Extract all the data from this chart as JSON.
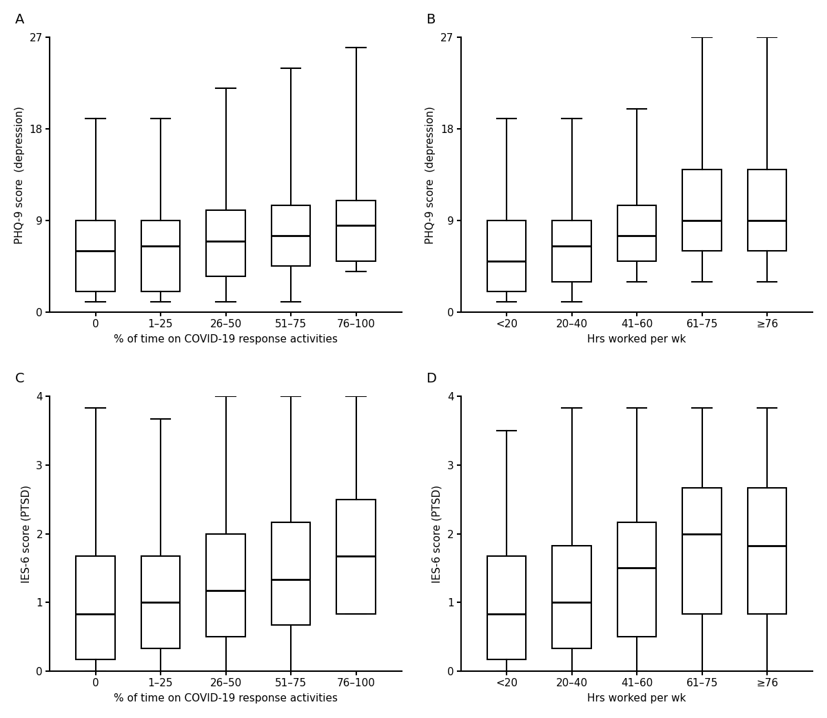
{
  "panel_A": {
    "label": "A",
    "xlabel": "% of time on COVID-19 response activities",
    "ylabel": "PHQ-9 score  (depression)",
    "categories": [
      "0",
      "1–25",
      "26–50",
      "51–75",
      "76–100"
    ],
    "boxes": [
      {
        "whislo": 1.0,
        "q1": 2.0,
        "med": 6.0,
        "q3": 9.0,
        "whishi": 19.0
      },
      {
        "whislo": 1.0,
        "q1": 2.0,
        "med": 6.5,
        "q3": 9.0,
        "whishi": 19.0
      },
      {
        "whislo": 1.0,
        "q1": 3.5,
        "med": 7.0,
        "q3": 10.0,
        "whishi": 22.0
      },
      {
        "whislo": 1.0,
        "q1": 4.5,
        "med": 7.5,
        "q3": 10.5,
        "whishi": 24.0
      },
      {
        "whislo": 4.0,
        "q1": 5.0,
        "med": 8.5,
        "q3": 11.0,
        "whishi": 26.0
      }
    ],
    "ylim": [
      0,
      27
    ],
    "yticks": [
      0,
      9,
      18,
      27
    ]
  },
  "panel_B": {
    "label": "B",
    "xlabel": "Hrs worked per wk",
    "ylabel": "PHQ-9 score  (depression)",
    "categories": [
      "<20",
      "20–40",
      "41–60",
      "61–75",
      "≥76"
    ],
    "boxes": [
      {
        "whislo": 1.0,
        "q1": 2.0,
        "med": 5.0,
        "q3": 9.0,
        "whishi": 19.0
      },
      {
        "whislo": 1.0,
        "q1": 3.0,
        "med": 6.5,
        "q3": 9.0,
        "whishi": 19.0
      },
      {
        "whislo": 3.0,
        "q1": 5.0,
        "med": 7.5,
        "q3": 10.5,
        "whishi": 20.0
      },
      {
        "whislo": 3.0,
        "q1": 6.0,
        "med": 9.0,
        "q3": 14.0,
        "whishi": 27.0
      },
      {
        "whislo": 3.0,
        "q1": 6.0,
        "med": 9.0,
        "q3": 14.0,
        "whishi": 27.0
      }
    ],
    "ylim": [
      0,
      27
    ],
    "yticks": [
      0,
      9,
      18,
      27
    ]
  },
  "panel_C": {
    "label": "C",
    "xlabel": "% of time on COVID-19 response activities",
    "ylabel": "IES-6 score (PTSD)",
    "categories": [
      "0",
      "1–25",
      "26–50",
      "51–75",
      "76–100"
    ],
    "boxes": [
      {
        "whislo": 0.0,
        "q1": 0.17,
        "med": 0.83,
        "q3": 1.67,
        "whishi": 3.83
      },
      {
        "whislo": 0.0,
        "q1": 0.33,
        "med": 1.0,
        "q3": 1.67,
        "whishi": 3.67
      },
      {
        "whislo": 0.0,
        "q1": 0.5,
        "med": 1.17,
        "q3": 2.0,
        "whishi": 4.0
      },
      {
        "whislo": 0.0,
        "q1": 0.67,
        "med": 1.33,
        "q3": 2.17,
        "whishi": 4.0
      },
      {
        "whislo": 0.83,
        "q1": 0.83,
        "med": 1.67,
        "q3": 2.5,
        "whishi": 4.0
      }
    ],
    "ylim": [
      0,
      4
    ],
    "yticks": [
      0,
      1,
      2,
      3,
      4
    ]
  },
  "panel_D": {
    "label": "D",
    "xlabel": "Hrs worked per wk",
    "ylabel": "IES-6 score (PTSD)",
    "categories": [
      "<20",
      "20–40",
      "41–60",
      "61–75",
      "≥76"
    ],
    "boxes": [
      {
        "whislo": 0.0,
        "q1": 0.17,
        "med": 0.83,
        "q3": 1.67,
        "whishi": 3.5
      },
      {
        "whislo": 0.0,
        "q1": 0.33,
        "med": 1.0,
        "q3": 1.83,
        "whishi": 3.83
      },
      {
        "whislo": 0.0,
        "q1": 0.5,
        "med": 1.5,
        "q3": 2.17,
        "whishi": 3.83
      },
      {
        "whislo": 0.0,
        "q1": 0.83,
        "med": 2.0,
        "q3": 2.67,
        "whishi": 3.83
      },
      {
        "whislo": 0.0,
        "q1": 0.83,
        "med": 1.83,
        "q3": 2.67,
        "whishi": 3.83
      }
    ],
    "ylim": [
      0,
      4
    ],
    "yticks": [
      0,
      1,
      2,
      3,
      4
    ]
  },
  "figure_bg": "#ffffff",
  "box_facecolor": "#ffffff",
  "box_edgecolor": "#000000",
  "median_color": "#000000",
  "whisker_color": "#000000",
  "cap_color": "#000000",
  "linewidth": 1.5,
  "box_width": 0.6
}
